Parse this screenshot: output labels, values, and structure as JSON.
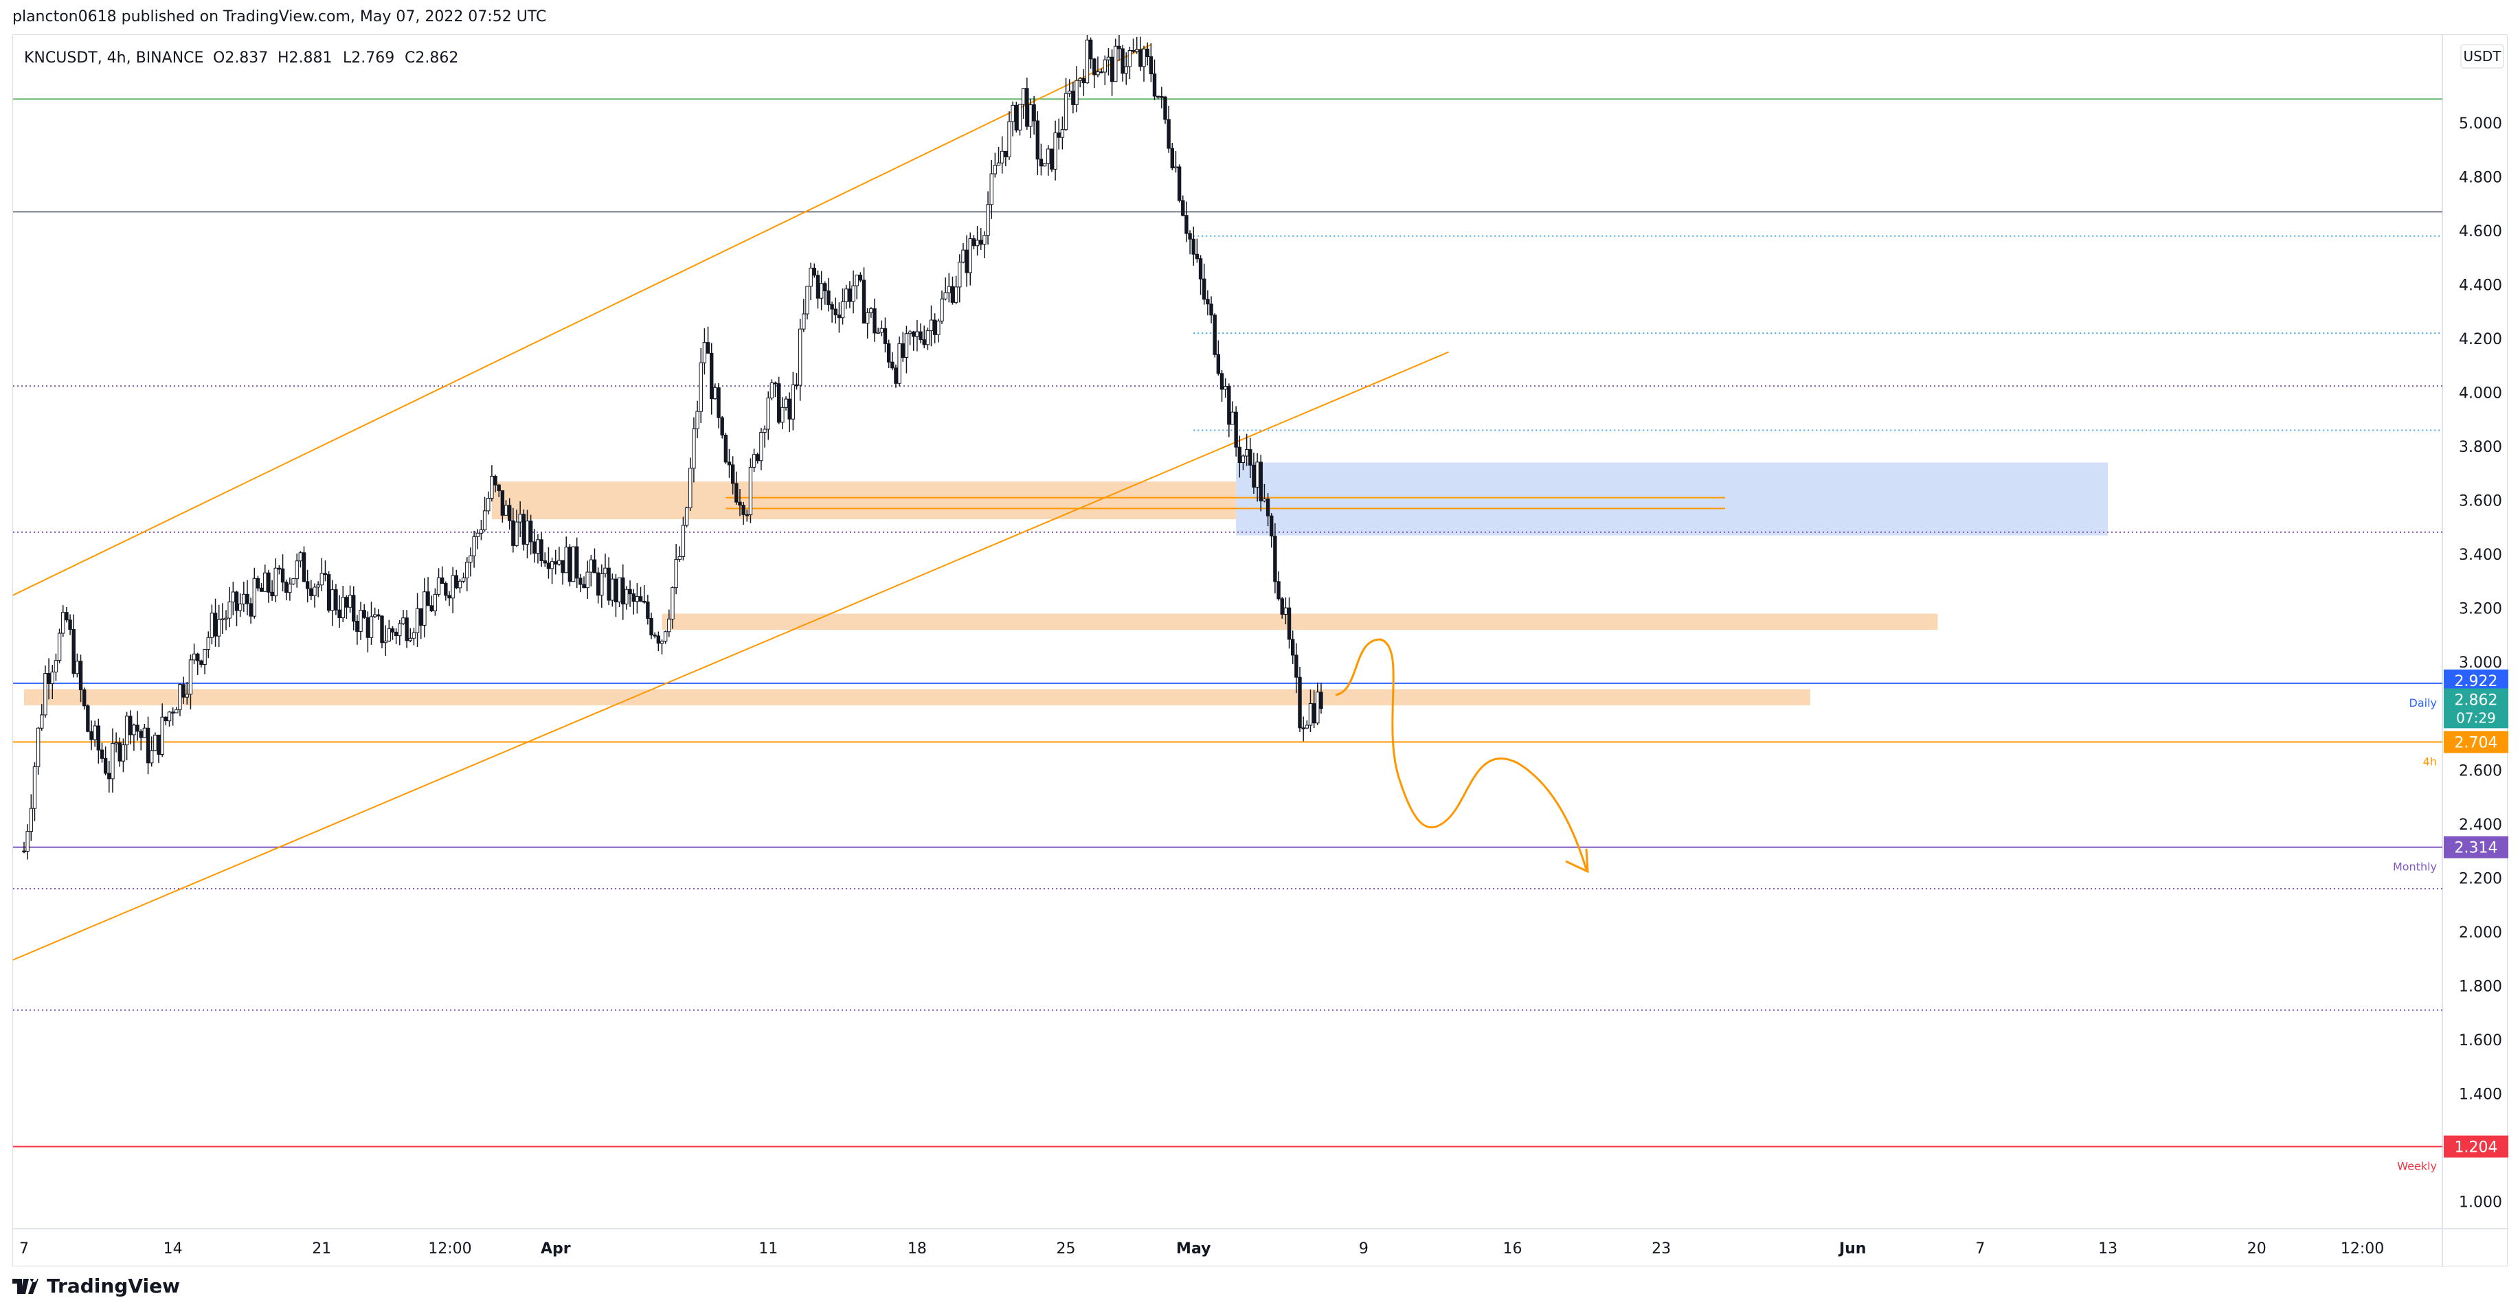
{
  "header": {
    "published": "plancton0618 published on TradingView.com, May 07, 2022 07:52 UTC"
  },
  "symbol": {
    "title": "KNCUSDT, 4h, BINANCE",
    "open": "O2.837",
    "high": "H2.881",
    "low": "L2.769",
    "close": "C2.862"
  },
  "currency_button": "USDT",
  "footer": {
    "brand": "TradingView"
  },
  "colors": {
    "candle": "#131722",
    "orange": "#ff9800",
    "zone_orange": "#f9c896",
    "zone_blue": "#7aa4ef",
    "purple": "#7e57c2",
    "red": "#f23645",
    "blue": "#2962ff",
    "teal": "#26a69a",
    "green_line": "#66bb6a",
    "cyan_dotted": "#42a5f5",
    "grey_line": "#787b86"
  },
  "chart_data": {
    "type": "candlestick",
    "symbol": "KNCUSDT",
    "interval": "4h",
    "exchange": "BINANCE",
    "ylim": [
      0.92,
      5.3
    ],
    "y_ticks": [
      "5.000",
      "4.800",
      "4.600",
      "4.400",
      "4.200",
      "4.000",
      "3.800",
      "3.600",
      "3.400",
      "3.200",
      "3.000",
      "2.800",
      "2.600",
      "2.400",
      "2.200",
      "2.000",
      "1.800",
      "1.600",
      "1.400",
      "1.200",
      "1.000"
    ],
    "x_ticks": [
      "7",
      "14",
      "21",
      "12:00",
      "Apr",
      "11",
      "18",
      "25",
      "May",
      "9",
      "16",
      "23",
      "Jun",
      "7",
      "13",
      "20",
      "12:00"
    ],
    "price_path": {
      "dates": [
        "2022-03-07",
        "2022-03-08",
        "2022-03-09",
        "2022-03-10",
        "2022-03-11",
        "2022-03-12",
        "2022-03-13",
        "2022-03-14",
        "2022-03-16",
        "2022-03-18",
        "2022-03-20",
        "2022-03-22",
        "2022-03-24",
        "2022-03-26",
        "2022-03-28",
        "2022-03-29",
        "2022-03-30",
        "2022-04-01",
        "2022-04-03",
        "2022-04-05",
        "2022-04-06",
        "2022-04-07",
        "2022-04-08",
        "2022-04-09",
        "2022-04-10",
        "2022-04-11",
        "2022-04-12",
        "2022-04-13",
        "2022-04-14",
        "2022-04-15",
        "2022-04-17",
        "2022-04-19",
        "2022-04-21",
        "2022-04-22",
        "2022-04-23",
        "2022-04-24",
        "2022-04-25",
        "2022-04-26",
        "2022-04-27",
        "2022-04-28",
        "2022-04-29",
        "2022-04-30",
        "2022-05-01",
        "2022-05-02",
        "2022-05-03",
        "2022-05-04",
        "2022-05-05",
        "2022-05-06",
        "2022-05-07"
      ],
      "close": [
        2.3,
        2.95,
        3.15,
        2.75,
        2.6,
        2.8,
        2.65,
        2.85,
        3.15,
        3.25,
        3.35,
        3.2,
        3.1,
        3.2,
        3.4,
        3.65,
        3.5,
        3.4,
        3.3,
        3.2,
        3.1,
        3.45,
        4.2,
        3.7,
        3.6,
        4.0,
        3.9,
        4.45,
        4.3,
        4.4,
        4.1,
        4.3,
        4.6,
        4.9,
        5.1,
        4.8,
        5.05,
        5.25,
        5.2,
        5.25,
        5.2,
        4.9,
        4.5,
        4.2,
        3.8,
        3.7,
        3.3,
        2.8,
        2.862
      ]
    },
    "horizontal_levels": [
      {
        "price": 5.088,
        "style": "solid",
        "color": "green",
        "label": ""
      },
      {
        "price": 4.67,
        "style": "solid",
        "color": "grey",
        "label": ""
      },
      {
        "price": 4.024,
        "style": "dotted",
        "color": "purple",
        "label": ""
      },
      {
        "price": 3.482,
        "style": "dotted",
        "color": "purple",
        "label": ""
      },
      {
        "price": 2.922,
        "style": "solid",
        "color": "blue",
        "label": "Daily",
        "badge": "2.922"
      },
      {
        "price": 2.704,
        "style": "solid",
        "color": "orange",
        "label": "4h",
        "badge": "2.704"
      },
      {
        "price": 2.314,
        "style": "solid",
        "color": "purple",
        "label": "Monthly",
        "badge": "2.314"
      },
      {
        "price": 2.16,
        "style": "dotted",
        "color": "purple",
        "label": ""
      },
      {
        "price": 1.71,
        "style": "dotted",
        "color": "purple",
        "label": ""
      },
      {
        "price": 1.204,
        "style": "solid",
        "color": "red",
        "label": "Weekly",
        "badge": "1.204"
      }
    ],
    "dotted_levels_right": [
      4.58,
      4.22,
      3.86
    ],
    "zones": [
      {
        "kind": "supply",
        "color": "orange",
        "from_date": "2022-03-29",
        "to_date": "2022-05-03",
        "low": 3.53,
        "high": 3.67
      },
      {
        "kind": "supply",
        "color": "blue",
        "from_date": "2022-05-03",
        "to_date": "2022-06-13",
        "low": 3.47,
        "high": 3.74
      },
      {
        "kind": "zone",
        "color": "orange",
        "from_date": "2022-04-06",
        "to_date": "2022-06-05",
        "low": 3.12,
        "high": 3.18
      },
      {
        "kind": "zone",
        "color": "orange",
        "from_date": "2022-03-07",
        "to_date": "2022-05-30",
        "low": 2.84,
        "high": 2.9
      }
    ],
    "current_price": {
      "value": "2.862",
      "countdown": "07:29"
    }
  }
}
